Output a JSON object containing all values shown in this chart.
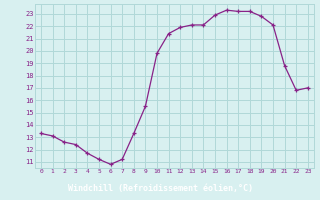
{
  "x": [
    0,
    1,
    2,
    3,
    4,
    5,
    6,
    7,
    8,
    9,
    10,
    11,
    12,
    13,
    14,
    15,
    16,
    17,
    18,
    19,
    20,
    21,
    22,
    23
  ],
  "y": [
    13.3,
    13.1,
    12.6,
    12.4,
    11.7,
    11.2,
    10.8,
    11.2,
    13.3,
    15.5,
    19.8,
    21.4,
    21.9,
    22.1,
    22.1,
    22.9,
    23.3,
    23.2,
    23.2,
    22.8,
    22.1,
    18.8,
    16.8,
    17.0
  ],
  "line_color": "#882288",
  "marker": "+",
  "bg_color": "#d8f0f0",
  "grid_color": "#b0d8d8",
  "xlabel": "Windchill (Refroidissement éolien,°C)",
  "ylabel_ticks": [
    11,
    12,
    13,
    14,
    15,
    16,
    17,
    18,
    19,
    20,
    21,
    22,
    23
  ],
  "xlim": [
    -0.5,
    23.5
  ],
  "ylim": [
    10.5,
    23.8
  ],
  "xlabel_bg": "#882288",
  "label_color": "#ffffff"
}
